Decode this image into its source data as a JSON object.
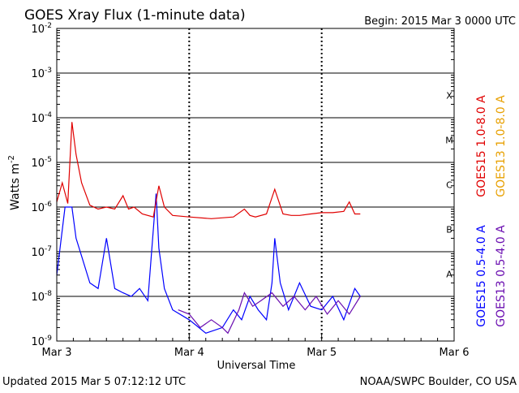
{
  "chart_data": {
    "type": "line",
    "title": "GOES Xray Flux (1-minute data)",
    "begin_label": "Begin:  2015 Mar 3 0000 UTC",
    "ylabel": "Watts m",
    "ylabel_exponent": "-2",
    "xlabel": "Universal Time",
    "y_scale": "log",
    "ylim": [
      1e-09,
      0.01
    ],
    "y_ticks": [
      {
        "base": "10",
        "exp": "-9",
        "value": 1e-09
      },
      {
        "base": "10",
        "exp": "-8",
        "value": 1e-08
      },
      {
        "base": "10",
        "exp": "-7",
        "value": 1e-07
      },
      {
        "base": "10",
        "exp": "-6",
        "value": 1e-06
      },
      {
        "base": "10",
        "exp": "-5",
        "value": 1e-05
      },
      {
        "base": "10",
        "exp": "-4",
        "value": 0.0001
      },
      {
        "base": "10",
        "exp": "-3",
        "value": 0.001
      },
      {
        "base": "10",
        "exp": "-2",
        "value": 0.01
      }
    ],
    "xlim": [
      "2015-03-03T00:00",
      "2015-03-06T00:00"
    ],
    "x_ticks": [
      {
        "label": "Mar 3",
        "value": "2015-03-03T00:00"
      },
      {
        "label": "Mar 4",
        "value": "2015-03-04T00:00"
      },
      {
        "label": "Mar 5",
        "value": "2015-03-05T00:00"
      },
      {
        "label": "Mar 6",
        "value": "2015-03-06T00:00"
      }
    ],
    "flare_classes": [
      {
        "label": "X",
        "value": 0.0001
      },
      {
        "label": "M",
        "value": 1e-05
      },
      {
        "label": "C",
        "value": 1e-06
      },
      {
        "label": "B",
        "value": 1e-07
      },
      {
        "label": "A",
        "value": 1e-08
      }
    ],
    "legend": [
      {
        "text": "GOES15 1.0-8.0 A",
        "color": "#e00000"
      },
      {
        "text": "GOES13 1.0-8.0 A",
        "color": "#e8a000"
      },
      {
        "text": "GOES15 0.5-4.0 A",
        "color": "#0000ff"
      },
      {
        "text": "GOES13 0.5-4.0 A",
        "color": "#6a0db0"
      }
    ],
    "grid": true,
    "series": [
      {
        "name": "GOES15 1.0-8.0 A",
        "color": "#e00000",
        "x": [
          "2015-03-03T00:00",
          "2015-03-03T01:00",
          "2015-03-03T02:00",
          "2015-03-03T02:45",
          "2015-03-03T03:30",
          "2015-03-03T04:30",
          "2015-03-03T06:00",
          "2015-03-03T07:30",
          "2015-03-03T09:00",
          "2015-03-03T10:30",
          "2015-03-03T12:00",
          "2015-03-03T13:00",
          "2015-03-03T14:00",
          "2015-03-03T15:30",
          "2015-03-03T17:30",
          "2015-03-03T18:30",
          "2015-03-03T19:30",
          "2015-03-03T21:00",
          "2015-03-04T00:00",
          "2015-03-04T04:00",
          "2015-03-04T08:00",
          "2015-03-04T10:00",
          "2015-03-04T11:00",
          "2015-03-04T12:00",
          "2015-03-04T14:00",
          "2015-03-04T15:30",
          "2015-03-04T17:00",
          "2015-03-04T18:30",
          "2015-03-04T20:00",
          "2015-03-04T22:00",
          "2015-03-05T00:00",
          "2015-03-05T02:00",
          "2015-03-05T04:00",
          "2015-03-05T05:00",
          "2015-03-05T06:00",
          "2015-03-05T07:00"
        ],
        "y": [
          1.3e-06,
          3.5e-06,
          1.2e-06,
          8e-05,
          1.5e-05,
          3.5e-06,
          1.1e-06,
          9e-07,
          1e-06,
          9e-07,
          1.8e-06,
          9e-07,
          1e-06,
          7e-07,
          6e-07,
          3e-06,
          1e-06,
          6.5e-07,
          6e-07,
          5.5e-07,
          6e-07,
          9e-07,
          6.5e-07,
          6e-07,
          7e-07,
          2.5e-06,
          7e-07,
          6.5e-07,
          6.5e-07,
          7e-07,
          7.5e-07,
          7.5e-07,
          8e-07,
          1.3e-06,
          7e-07,
          7e-07
        ]
      },
      {
        "name": "GOES15 0.5-4.0 A",
        "color": "#0000ff",
        "x": [
          "2015-03-03T00:00",
          "2015-03-03T01:30",
          "2015-03-03T02:45",
          "2015-03-03T03:30",
          "2015-03-03T04:30",
          "2015-03-03T06:00",
          "2015-03-03T07:30",
          "2015-03-03T09:00",
          "2015-03-03T10:30",
          "2015-03-03T12:00",
          "2015-03-03T13:30",
          "2015-03-03T15:00",
          "2015-03-03T16:30",
          "2015-03-03T18:00",
          "2015-03-03T18:30",
          "2015-03-03T19:30",
          "2015-03-03T21:00",
          "2015-03-04T00:00",
          "2015-03-04T03:00",
          "2015-03-04T06:00",
          "2015-03-04T08:00",
          "2015-03-04T09:30",
          "2015-03-04T11:00",
          "2015-03-04T12:30",
          "2015-03-04T14:00",
          "2015-03-04T15:00",
          "2015-03-04T15:30",
          "2015-03-04T16:30",
          "2015-03-04T18:00",
          "2015-03-04T20:00",
          "2015-03-04T22:00",
          "2015-03-05T00:00",
          "2015-03-05T02:00",
          "2015-03-05T04:00",
          "2015-03-05T06:00",
          "2015-03-05T07:00"
        ],
        "y": [
          3e-08,
          1e-06,
          1e-06,
          2e-07,
          8e-08,
          2e-08,
          1.5e-08,
          2e-07,
          1.5e-08,
          1.2e-08,
          1e-08,
          1.5e-08,
          8e-09,
          2e-06,
          1.2e-07,
          1.5e-08,
          5e-09,
          3e-09,
          1.5e-09,
          2e-09,
          5e-09,
          3e-09,
          1e-08,
          5e-09,
          3e-09,
          2e-08,
          2e-07,
          2e-08,
          5e-09,
          2e-08,
          6e-09,
          5e-09,
          1e-08,
          3e-09,
          1.5e-08,
          1e-08
        ]
      },
      {
        "name": "GOES13 0.5-4.0 A",
        "color": "#6a0db0",
        "x": [
          "2015-03-03T22:00",
          "2015-03-04T00:00",
          "2015-03-04T02:00",
          "2015-03-04T04:00",
          "2015-03-04T06:00",
          "2015-03-04T07:00",
          "2015-03-04T09:00",
          "2015-03-04T10:00",
          "2015-03-04T11:30",
          "2015-03-04T13:00",
          "2015-03-04T15:00",
          "2015-03-04T17:00",
          "2015-03-04T19:00",
          "2015-03-04T21:00",
          "2015-03-04T23:00",
          "2015-03-05T01:00",
          "2015-03-05T03:00",
          "2015-03-05T05:00",
          "2015-03-05T07:00"
        ],
        "y": [
          5e-09,
          4e-09,
          2e-09,
          3e-09,
          2e-09,
          1.5e-09,
          5e-09,
          1.2e-08,
          6e-09,
          8e-09,
          1.2e-08,
          6e-09,
          1e-08,
          5e-09,
          1e-08,
          4e-09,
          8e-09,
          4e-09,
          1e-08
        ]
      }
    ]
  },
  "footer": {
    "updated": "Updated 2015 Mar  5 07:12:12 UTC",
    "credit": "NOAA/SWPC Boulder, CO USA"
  }
}
